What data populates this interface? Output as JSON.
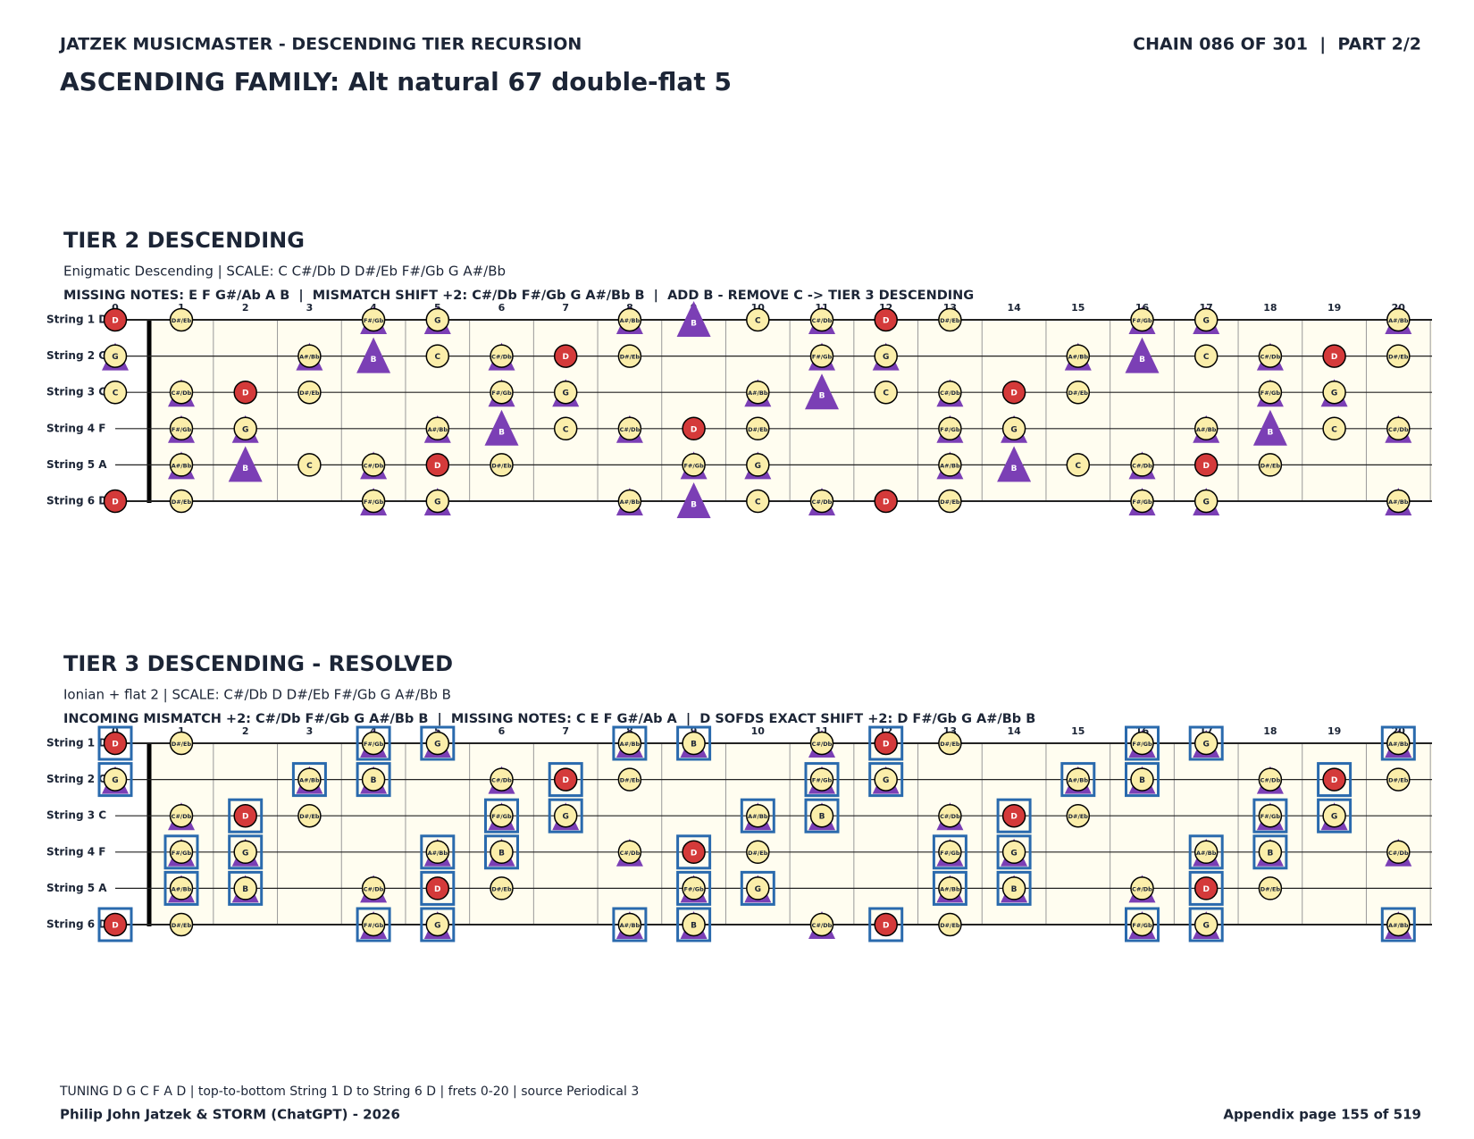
{
  "header": {
    "left": "JATZEK MUSICMASTER - DESCENDING TIER RECURSION",
    "right": "CHAIN 086 OF 301  |  PART 2/2",
    "title": "ASCENDING FAMILY: Alt natural 67 double-flat 5"
  },
  "notes": [
    "C",
    "C#/Db",
    "D",
    "D#/Eb",
    "E",
    "F",
    "F#/Gb",
    "G",
    "G#/Ab",
    "A",
    "A#/Bb",
    "B"
  ],
  "strings": [
    "String 1 D",
    "String 2 G",
    "String 3 C",
    "String 4 F",
    "String 5 A",
    "String 6 D"
  ],
  "frets": [
    0,
    1,
    2,
    3,
    4,
    5,
    6,
    7,
    8,
    9,
    10,
    11,
    12,
    13,
    14,
    15,
    16,
    17,
    18,
    19,
    20
  ],
  "highlight": "D",
  "panels": [
    {
      "title": "TIER 2 DESCENDING",
      "subtitle": "Enigmatic Descending  |  SCALE: C C#/Db D D#/Eb F#/Gb G A#/Bb",
      "info": "MISSING NOTES: E F G#/Ab A B  |  MISMATCH SHIFT +2: C#/Db F#/Gb G A#/Bb B  |  ADD B - REMOVE C -> TIER 3 DESCENDING",
      "scale": [
        "C",
        "C#/Db",
        "D",
        "D#/Eb",
        "F#/Gb",
        "G",
        "A#/Bb"
      ],
      "triangles": [
        "C#/Db",
        "F#/Gb",
        "G",
        "A#/Bb",
        "B"
      ]
    },
    {
      "title": "TIER 3 DESCENDING - RESOLVED",
      "subtitle": "Ionian + flat 2  |  SCALE: C#/Db D D#/Eb F#/Gb G A#/Bb B",
      "info": "INCOMING MISMATCH +2: C#/Db F#/Gb G A#/Bb B  |  MISSING NOTES: C E F G#/Ab A  |  D SOFDS EXACT SHIFT +2: D F#/Gb G A#/Bb B",
      "scale": [
        "C#/Db",
        "D",
        "D#/Eb",
        "F#/Gb",
        "G",
        "A#/Bb",
        "B"
      ],
      "triangles": [
        "C#/Db",
        "F#/Gb",
        "G",
        "A#/Bb",
        "B"
      ],
      "boxes": [
        "D",
        "F#/Gb",
        "G",
        "A#/Bb",
        "B"
      ]
    }
  ],
  "footer": {
    "note": "TUNING D G C F A D | top-to-bottom String 1 D to String 6 D | frets 0-20 | source Periodical 3",
    "author": "Philip John Jatzek & STORM (ChatGPT) - 2026",
    "page": "Appendix page 155 of 519"
  }
}
